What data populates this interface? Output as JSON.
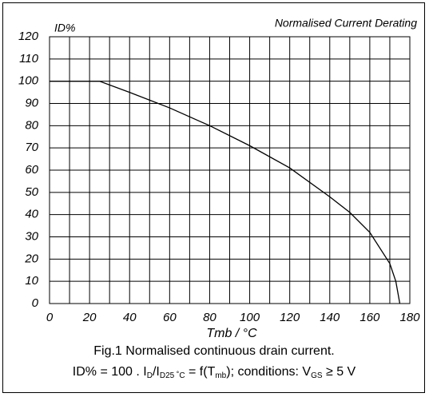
{
  "chart_data": {
    "type": "line",
    "title": "Normalised Current Derating",
    "ylabel": "ID%",
    "xlabel": "Tmb / °C",
    "x": [
      0,
      25,
      40,
      60,
      80,
      100,
      120,
      140,
      150,
      160,
      170,
      173,
      175
    ],
    "series": [
      {
        "name": "ID%",
        "color": "#000000",
        "values": [
          100,
          100,
          95,
          88,
          80,
          71,
          61,
          48,
          41,
          32,
          18,
          10,
          0
        ]
      }
    ],
    "xlim": [
      0,
      180
    ],
    "xticks": [
      0,
      20,
      40,
      60,
      80,
      100,
      120,
      140,
      160,
      180
    ],
    "xminor": [
      10,
      30,
      50,
      70,
      90,
      110,
      130,
      150,
      170
    ],
    "ylim": [
      0,
      120
    ],
    "yticks": [
      0,
      10,
      20,
      30,
      40,
      50,
      60,
      70,
      80,
      90,
      100,
      110,
      120
    ],
    "grid": true,
    "caption": [
      "Fig.1 Normalised continuous drain current.",
      [
        {
          "text": "ID% = 100 . I"
        },
        {
          "text": "D",
          "sub": true
        },
        {
          "text": "/I"
        },
        {
          "text": "D25 ˚C",
          "sub": true
        },
        {
          "text": " = f(T"
        },
        {
          "text": "mb",
          "sub": true
        },
        {
          "text": "); conditions: V"
        },
        {
          "text": "GS",
          "sub": true
        },
        {
          "text": " ≥ 5 V"
        }
      ]
    ]
  }
}
